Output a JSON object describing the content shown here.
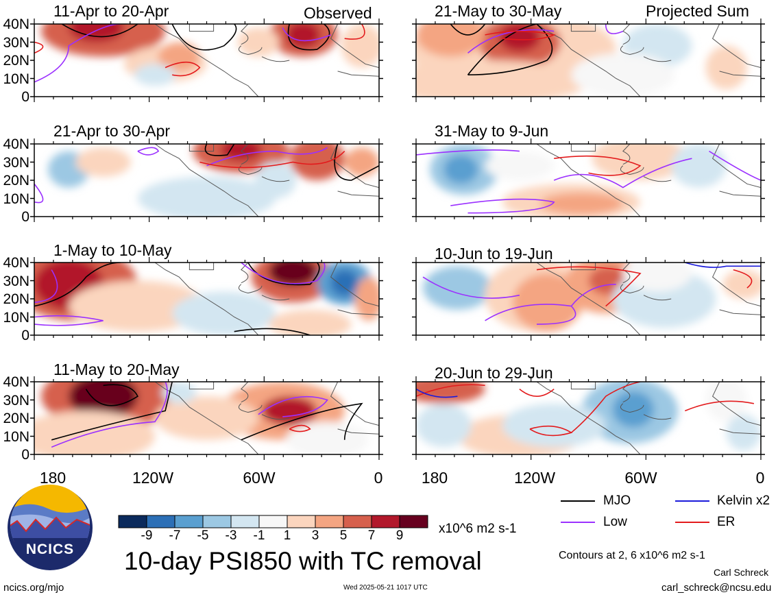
{
  "header": {
    "observed": "Observed",
    "projected": "Projected Sum"
  },
  "panels": {
    "left": [
      {
        "title": "11-Apr to 20-Apr"
      },
      {
        "title": "21-Apr to 30-Apr"
      },
      {
        "title": "1-May to 10-May"
      },
      {
        "title": "11-May to 20-May"
      }
    ],
    "right": [
      {
        "title": "21-May to 30-May"
      },
      {
        "title": "31-May to 9-Jun"
      },
      {
        "title": "10-Jun to 19-Jun"
      },
      {
        "title": "20-Jun to 29-Jun"
      }
    ]
  },
  "axes": {
    "lat_labels": [
      "40N",
      "30N",
      "20N",
      "10N",
      "0"
    ],
    "lon_labels": [
      "180",
      "120W",
      "60W",
      "0"
    ]
  },
  "colorbar": {
    "colors": [
      "#0b2a5c",
      "#2c6fb6",
      "#5a9fd0",
      "#9cc8e3",
      "#d3e6f1",
      "#f7f7f7",
      "#fbd5be",
      "#f4a582",
      "#d6604d",
      "#b2182b",
      "#67001f"
    ],
    "tick_labels": [
      "-9",
      "-7",
      "-5",
      "-3",
      "-1",
      "1",
      "3",
      "5",
      "7",
      "9"
    ],
    "units": "x10^6 m2 s-1"
  },
  "legend": {
    "items": [
      {
        "label": "MJO",
        "color": "#000000"
      },
      {
        "label": "Kelvin x2",
        "color": "#1a1adb"
      },
      {
        "label": "Low",
        "color": "#9b30ff"
      },
      {
        "label": "ER",
        "color": "#e31a1c"
      }
    ]
  },
  "contours_note": "Contours at 2, 6 x10^6 m2 s-1",
  "title": "10-day PSI850 with TC removal",
  "logo": {
    "text": "NCICS"
  },
  "footer": {
    "url": "ncics.org/mjo",
    "timestamp": "Wed 2025-05-21 1017 UTC",
    "author": "Carl Schreck",
    "email": "carl_schreck@ncsu.edu"
  }
}
